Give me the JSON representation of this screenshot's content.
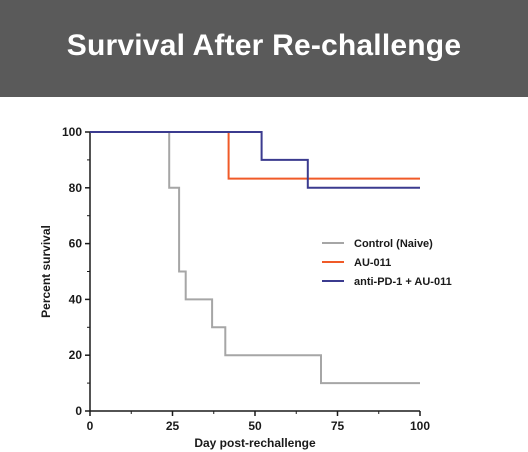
{
  "header": {
    "title": "Survival After Re-challenge",
    "background": "#5a5a5a",
    "color": "#ffffff"
  },
  "chart_data": {
    "type": "line",
    "step": true,
    "title": "Survival After Re-challenge",
    "xlabel": "Day post-rechallenge",
    "ylabel": "Percent survival",
    "xlim": [
      0,
      100
    ],
    "ylim": [
      0,
      100
    ],
    "x_ticks": [
      0,
      25,
      50,
      75,
      100
    ],
    "y_ticks": [
      0,
      20,
      40,
      60,
      80,
      100
    ],
    "grid": false,
    "legend_position": "right",
    "series": [
      {
        "name": "Control (Naive)",
        "color": "#a6a6a6",
        "x": [
          0,
          24,
          27,
          29,
          31,
          37,
          41,
          70,
          100
        ],
        "y": [
          100,
          80,
          50,
          40,
          40,
          30,
          20,
          10,
          10
        ]
      },
      {
        "name": "AU-011",
        "color": "#f05a28",
        "x": [
          0,
          42,
          100
        ],
        "y": [
          100,
          83.3,
          83.3
        ]
      },
      {
        "name": "anti-PD-1 + AU-011",
        "color": "#3b3b8f",
        "x": [
          0,
          52,
          66,
          100
        ],
        "y": [
          100,
          90,
          80,
          80
        ]
      }
    ]
  }
}
